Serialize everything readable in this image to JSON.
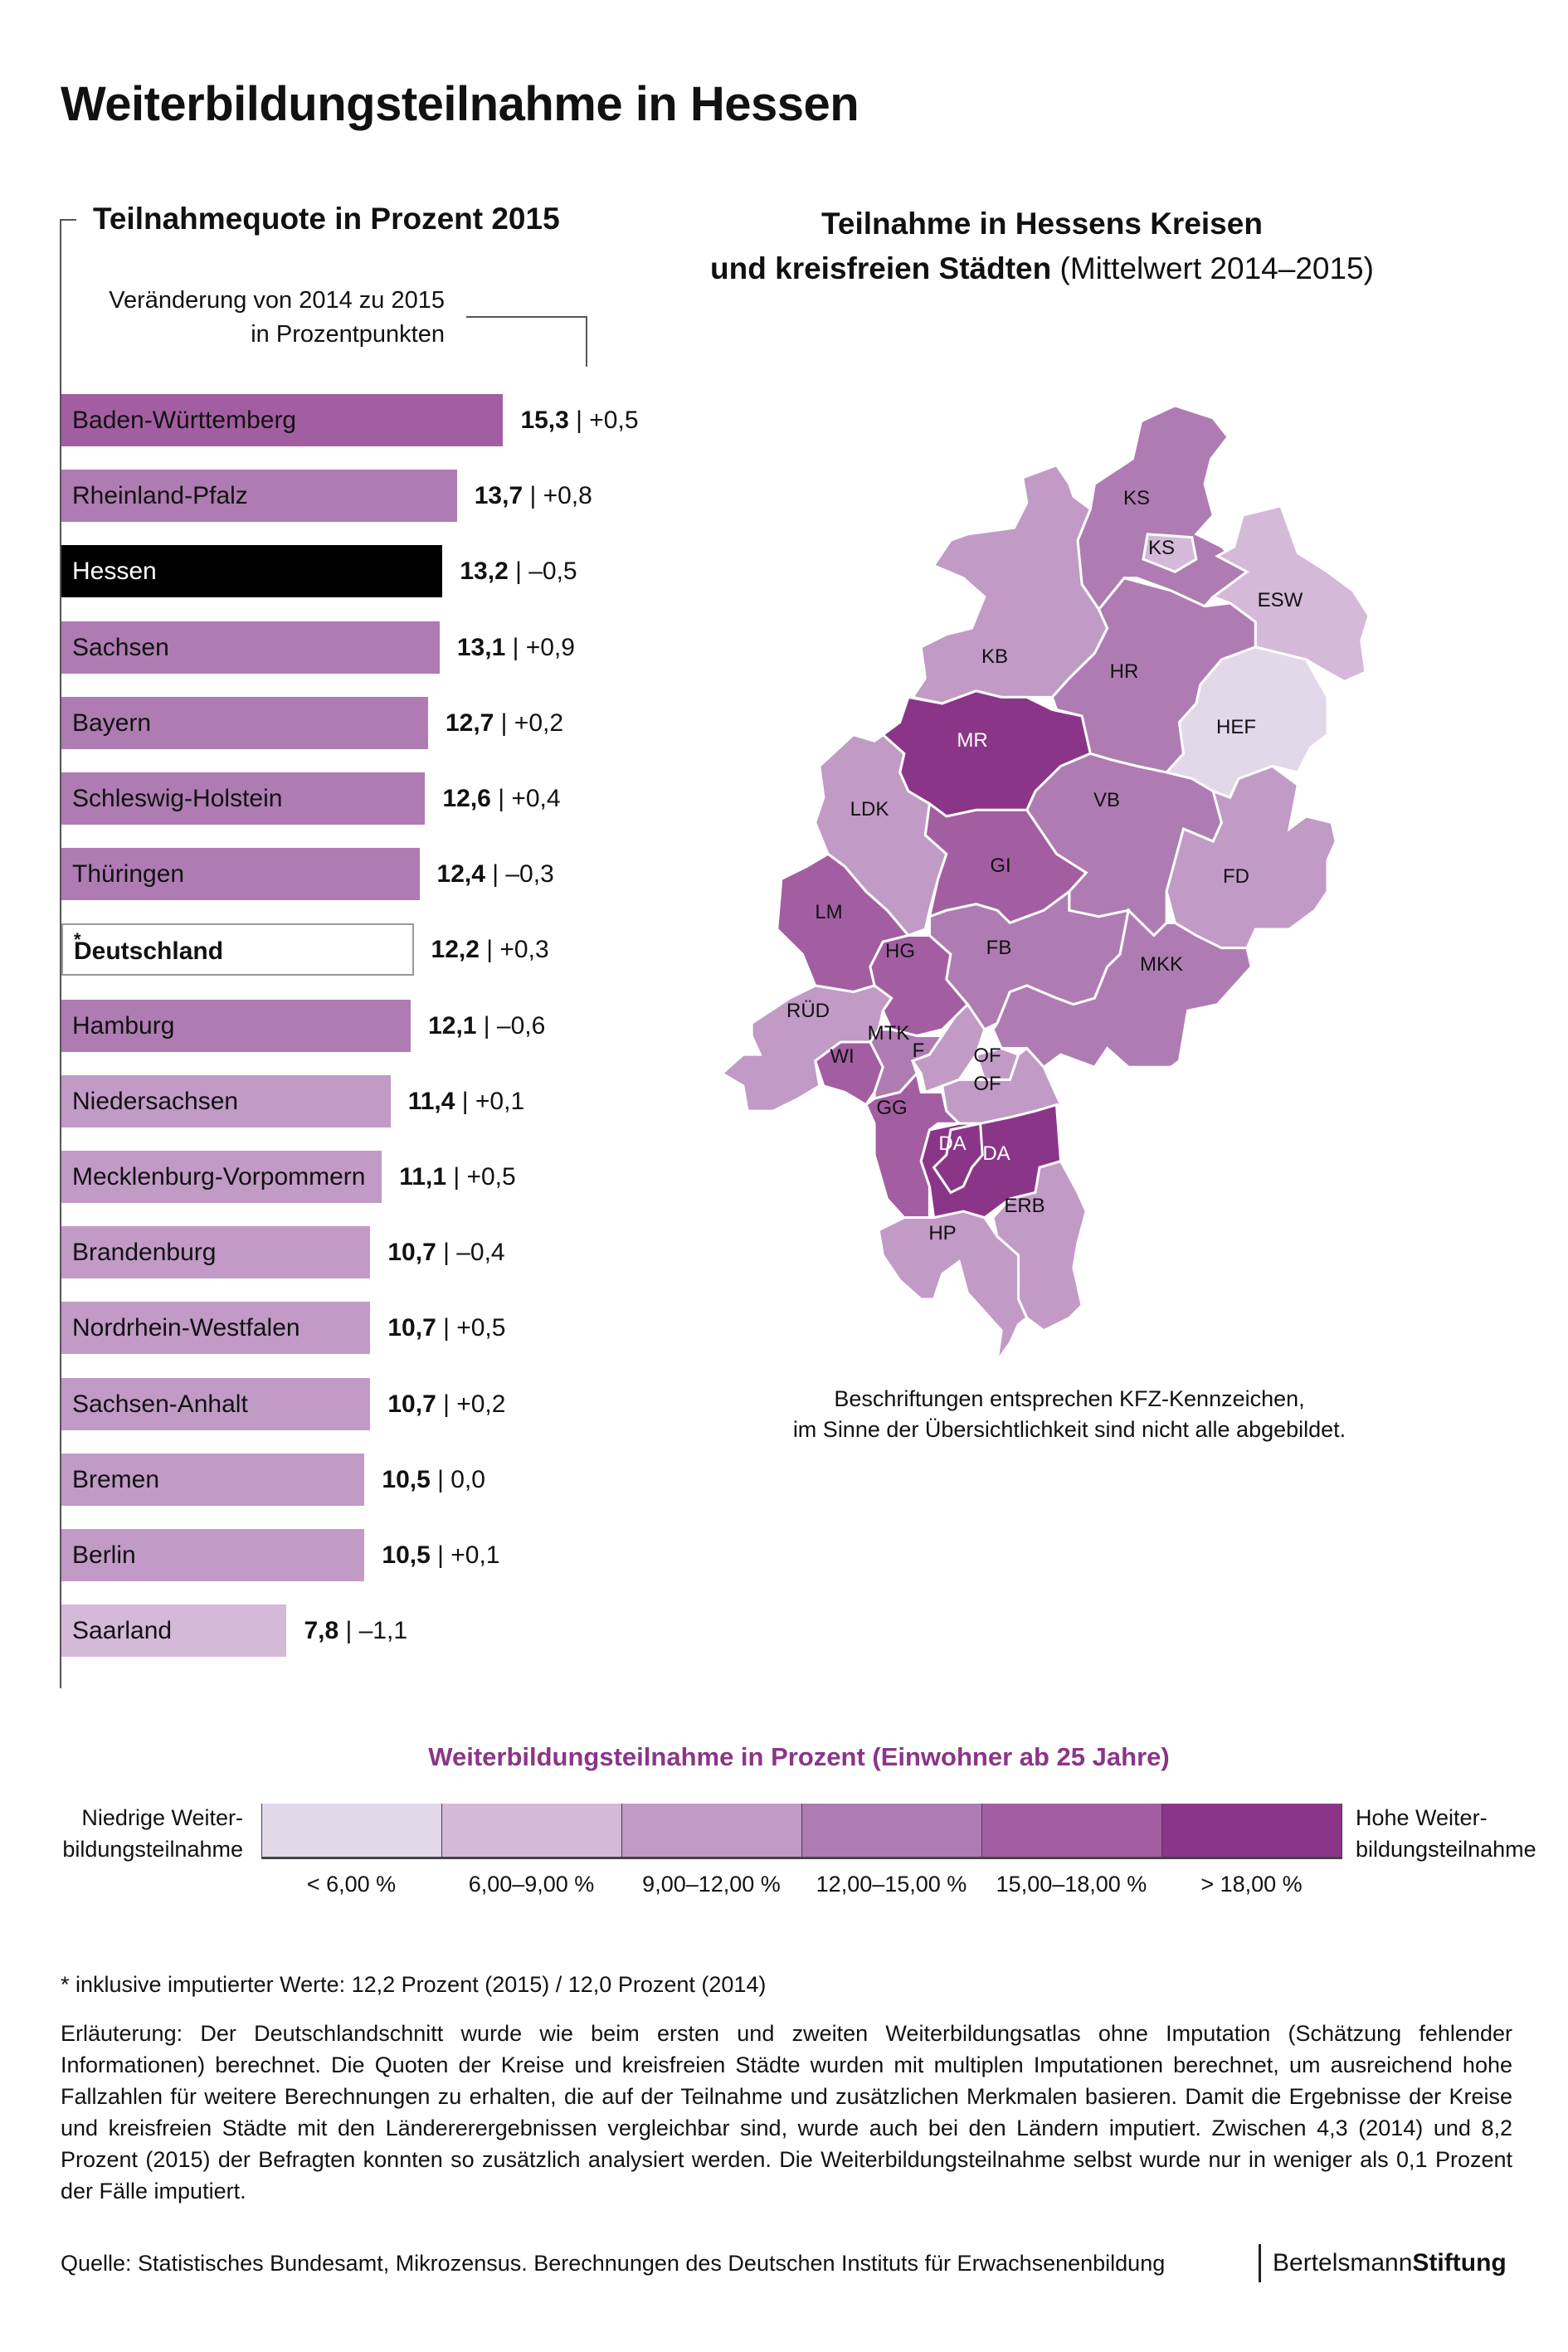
{
  "title": "Weiterbildungsteilnahme in Hessen",
  "bar_section": {
    "title": "Teilnahmequote in Prozent 2015",
    "change_note_line1": "Veränderung von 2014 zu 2015",
    "change_note_line2": "in Prozentpunkten"
  },
  "chart_data": {
    "type": "bar",
    "title": "Teilnahmequote in Prozent 2015",
    "orientation": "horizontal",
    "categories": [
      "Baden-Württemberg",
      "Rheinland-Pfalz",
      "Hessen",
      "Sachsen",
      "Bayern",
      "Schleswig-Holstein",
      "Thüringen",
      "Deutschland",
      "Hamburg",
      "Niedersachsen",
      "Mecklenburg-Vorpommern",
      "Brandenburg",
      "Nordrhein-Westfalen",
      "Sachsen-Anhalt",
      "Bremen",
      "Berlin",
      "Saarland"
    ],
    "values": [
      15.3,
      13.7,
      13.2,
      13.1,
      12.7,
      12.6,
      12.4,
      12.2,
      12.1,
      11.4,
      11.1,
      10.7,
      10.7,
      10.7,
      10.5,
      10.5,
      7.8
    ],
    "bars": [
      {
        "name": "Baden-Württemberg",
        "value_text": "15,3",
        "change_text": "| +0,5",
        "color": "#a35ea2"
      },
      {
        "name": "Rheinland-Pfalz",
        "value_text": "13,7",
        "change_text": "| +0,8",
        "color": "#ae7cb2"
      },
      {
        "name": "Hessen",
        "value_text": "13,2",
        "change_text": "| –0,5",
        "color": "#000000"
      },
      {
        "name": "Sachsen",
        "value_text": "13,1",
        "change_text": "| +0,9",
        "color": "#ae7cb2"
      },
      {
        "name": "Bayern",
        "value_text": "12,7",
        "change_text": "| +0,2",
        "color": "#ae7cb2"
      },
      {
        "name": "Schleswig-Holstein",
        "value_text": "12,6",
        "change_text": "| +0,4",
        "color": "#ae7cb2"
      },
      {
        "name": "Thüringen",
        "value_text": "12,4",
        "change_text": "| –0,3",
        "color": "#ae7cb2"
      },
      {
        "name": "Deutschland",
        "value_text": "12,2",
        "change_text": "| +0,3",
        "color": "#ffffff",
        "asterisk": "*"
      },
      {
        "name": "Hamburg",
        "value_text": "12,1",
        "change_text": "| –0,6",
        "color": "#ae7cb2"
      },
      {
        "name": "Niedersachsen",
        "value_text": "11,4",
        "change_text": "|  +0,1",
        "color": "#c19ac6"
      },
      {
        "name": "Mecklenburg-Vorpommern",
        "value_text": "11,1",
        "change_text": "| +0,5",
        "color": "#c19ac6"
      },
      {
        "name": "Brandenburg",
        "value_text": "10,7",
        "change_text": "| –0,4",
        "color": "#c19ac6"
      },
      {
        "name": "Nordrhein-Westfalen",
        "value_text": "10,7",
        "change_text": "| +0,5",
        "color": "#c19ac6"
      },
      {
        "name": "Sachsen-Anhalt",
        "value_text": "10,7",
        "change_text": "| +0,2",
        "color": "#c19ac6"
      },
      {
        "name": "Bremen",
        "value_text": "10,5",
        "change_text": "| 0,0",
        "color": "#c19ac6"
      },
      {
        "name": "Berlin",
        "value_text": "10,5",
        "change_text": "| +0,1",
        "color": "#c19ac6"
      },
      {
        "name": "Saarland",
        "value_text": "7,8",
        "change_text": "| –1,1",
        "color": "#d4b9d9"
      }
    ],
    "changes": [
      0.5,
      0.8,
      -0.5,
      0.9,
      0.2,
      0.4,
      -0.3,
      0.3,
      -0.6,
      0.1,
      0.5,
      -0.4,
      0.5,
      0.2,
      0.0,
      0.1,
      -1.1
    ]
  },
  "map": {
    "title_line1": "Teilnahme in Hessens Kreisen",
    "title_line2_bold": "und kreisfreien Städten",
    "title_line2_normal": " (Mittelwert 2014–2015)",
    "note_line1": "Beschriftungen entsprechen KFZ-Kennzeichen,",
    "note_line2": "im Sinne der Übersichtlichkeit sind nicht alle abgebildet.",
    "districts": [
      {
        "code": "KS",
        "color": "#ae7cb2"
      },
      {
        "code": "KS",
        "color": "#d4b9d9"
      },
      {
        "code": "ESW",
        "color": "#d4b9d9"
      },
      {
        "code": "KB",
        "color": "#c19ac6"
      },
      {
        "code": "HR",
        "color": "#ae7cb2"
      },
      {
        "code": "HEF",
        "color": "#e3d7ea"
      },
      {
        "code": "MR",
        "color": "#8b3589"
      },
      {
        "code": "VB",
        "color": "#ae7cb2"
      },
      {
        "code": "LDK",
        "color": "#c19ac6"
      },
      {
        "code": "GI",
        "color": "#a35ea2"
      },
      {
        "code": "FD",
        "color": "#c19ac6"
      },
      {
        "code": "LM",
        "color": "#a35ea2"
      },
      {
        "code": "HG",
        "color": "#a35ea2"
      },
      {
        "code": "FB",
        "color": "#ae7cb2"
      },
      {
        "code": "MKK",
        "color": "#ae7cb2"
      },
      {
        "code": "RÜD",
        "color": "#c19ac6"
      },
      {
        "code": "MTK",
        "color": "#ae7cb2"
      },
      {
        "code": "F",
        "color": "#c19ac6"
      },
      {
        "code": "OF",
        "color": "#c19ac6"
      },
      {
        "code": "OF",
        "color": "#c19ac6"
      },
      {
        "code": "WI",
        "color": "#a35ea2"
      },
      {
        "code": "GG",
        "color": "#a35ea2"
      },
      {
        "code": "DA",
        "color": "#8b3589"
      },
      {
        "code": "DA",
        "color": "#8b3589"
      },
      {
        "code": "ERB",
        "color": "#c19ac6"
      },
      {
        "code": "HP",
        "color": "#c19ac6"
      }
    ]
  },
  "legend": {
    "title": "Weiterbildungsteilnahme in Prozent (Einwohner ab 25 Jahre)",
    "low_line1": "Niedrige Weiter-",
    "low_line2": "bildungsteilnahme",
    "high_line1": "Hohe Weiter-",
    "high_line2": "bildungsteilnahme",
    "classes": [
      {
        "label": "< 6,00 %",
        "color": "#e3d7ea"
      },
      {
        "label": "6,00–9,00 %",
        "color": "#d4b9d9"
      },
      {
        "label": "9,00–12,00 %",
        "color": "#c19ac6"
      },
      {
        "label": "12,00–15,00 %",
        "color": "#ae7cb2"
      },
      {
        "label": "15,00–18,00 %",
        "color": "#a35ea2"
      },
      {
        "label": "> 18,00 %",
        "color": "#8b3589"
      }
    ]
  },
  "footnote": "* inklusive imputierter Werte: 12,2 Prozent (2015) / 12,0 Prozent (2014)",
  "explanation": "Erläuterung: Der Deutschlandschnitt wurde wie beim ersten und zweiten Weiterbildungsatlas ohne Imputation (Schätzung fehlender Informationen) berechnet. Die Quoten der Kreise und kreisfreien Städte wurden mit multiplen Imputationen berechnet, um ausreichend hohe Fallzahlen für weitere Berechnungen zu erhalten, die auf der Teilnahme und zusätzlichen Merkmalen basieren. Damit die Ergebnisse der Kreise und kreisfreien Städte mit den Ländererergebnissen vergleichbar sind, wurde auch bei den Ländern imputiert. Zwischen 4,3 (2014) und 8,2 Prozent (2015) der Befragten konnten so zusätzlich analysiert werden. Die Weiterbildungsteilnahme selbst wurde nur in weniger als 0,1 Prozent der Fälle imputiert.",
  "source": "Quelle: Statistisches Bundesamt, Mikrozensus. Berechnungen des Deutschen Instituts für Erwachsenenbildung",
  "logo": {
    "part1": "Bertelsmann",
    "part2": "Stiftung"
  }
}
